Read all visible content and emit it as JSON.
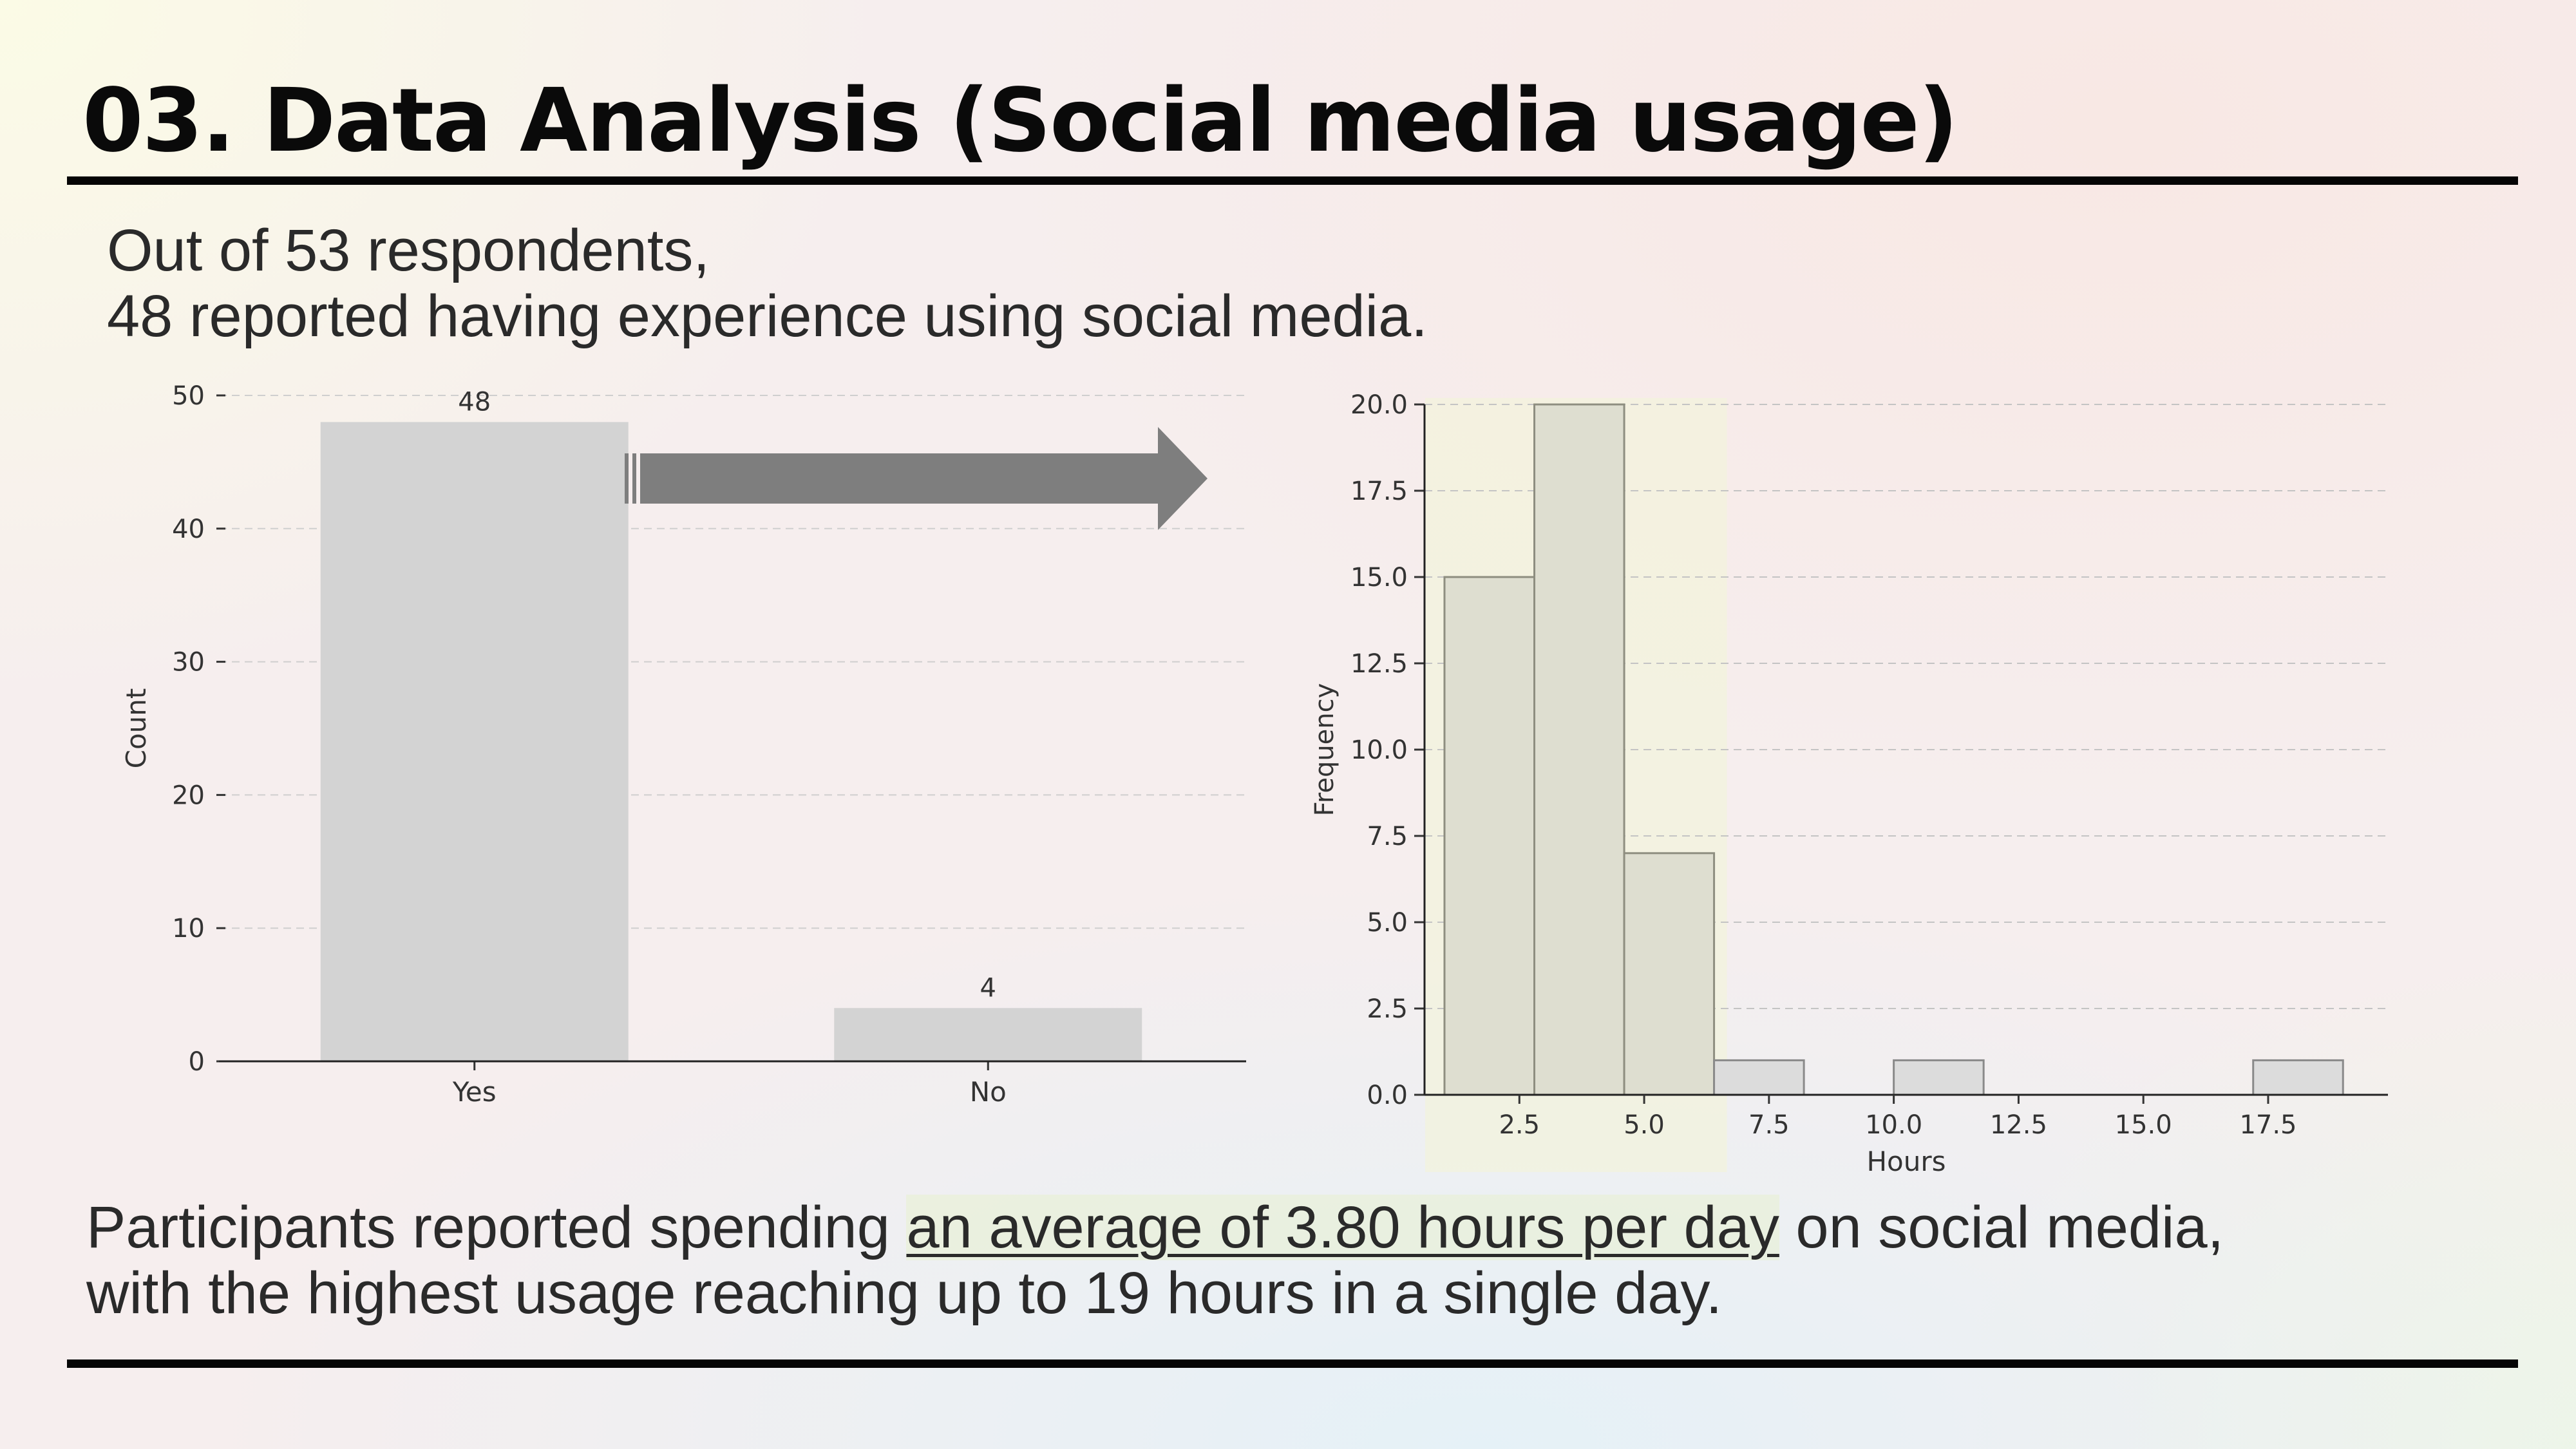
{
  "slide": {
    "title": "03. Data Analysis (Social media usage)",
    "intro_line1": "Out of 53 respondents,",
    "intro_line2": "48 reported having experience using social media.",
    "summary_before": "Participants reported spending ",
    "summary_highlight": "an average of 3.80 hours per day",
    "summary_after": " on social media,",
    "summary_line2": "with the highest usage reaching up to 19 hours in a single day."
  },
  "arrow_icon": "right-arrow-icon",
  "colors": {
    "bar_fill": "#d3d3d3",
    "hist_highlight_fill": "#deded0",
    "hist_highlight_stroke": "#8e8e80",
    "hist_fill": "#dcdcdc",
    "hist_stroke": "#8a8a8a",
    "highlight_band": "#f2f3dc",
    "arrow": "#7e7e7e"
  },
  "chart_data": [
    {
      "type": "bar",
      "categories": [
        "Yes",
        "No"
      ],
      "values": [
        48,
        4
      ],
      "data_labels": [
        "48",
        "4"
      ],
      "ylabel": "Count",
      "xlabel": "",
      "ylim": [
        0,
        50
      ],
      "yticks": [
        0,
        10,
        20,
        30,
        40,
        50
      ],
      "grid": "horizontal dashed",
      "legend": "none"
    },
    {
      "type": "histogram",
      "bins": [
        {
          "start": 1.0,
          "end": 2.8,
          "count": 15
        },
        {
          "start": 2.8,
          "end": 4.6,
          "count": 20
        },
        {
          "start": 4.6,
          "end": 6.4,
          "count": 7
        },
        {
          "start": 6.4,
          "end": 8.2,
          "count": 1
        },
        {
          "start": 8.2,
          "end": 10.0,
          "count": 0
        },
        {
          "start": 10.0,
          "end": 11.8,
          "count": 1
        },
        {
          "start": 11.8,
          "end": 13.6,
          "count": 0
        },
        {
          "start": 13.6,
          "end": 15.4,
          "count": 0
        },
        {
          "start": 15.4,
          "end": 17.2,
          "count": 0
        },
        {
          "start": 17.2,
          "end": 19.0,
          "count": 1
        }
      ],
      "highlighted_bins": 3,
      "xlabel": "Hours",
      "ylabel": "Frequency",
      "xlim": [
        0.6,
        19.9
      ],
      "ylim": [
        0,
        20
      ],
      "xticks": [
        "2.5",
        "5.0",
        "7.5",
        "10.0",
        "12.5",
        "15.0",
        "17.5"
      ],
      "yticks": [
        "0.0",
        "2.5",
        "5.0",
        "7.5",
        "10.0",
        "12.5",
        "15.0",
        "17.5",
        "20.0"
      ],
      "grid": "horizontal dashed",
      "legend": "none"
    }
  ]
}
